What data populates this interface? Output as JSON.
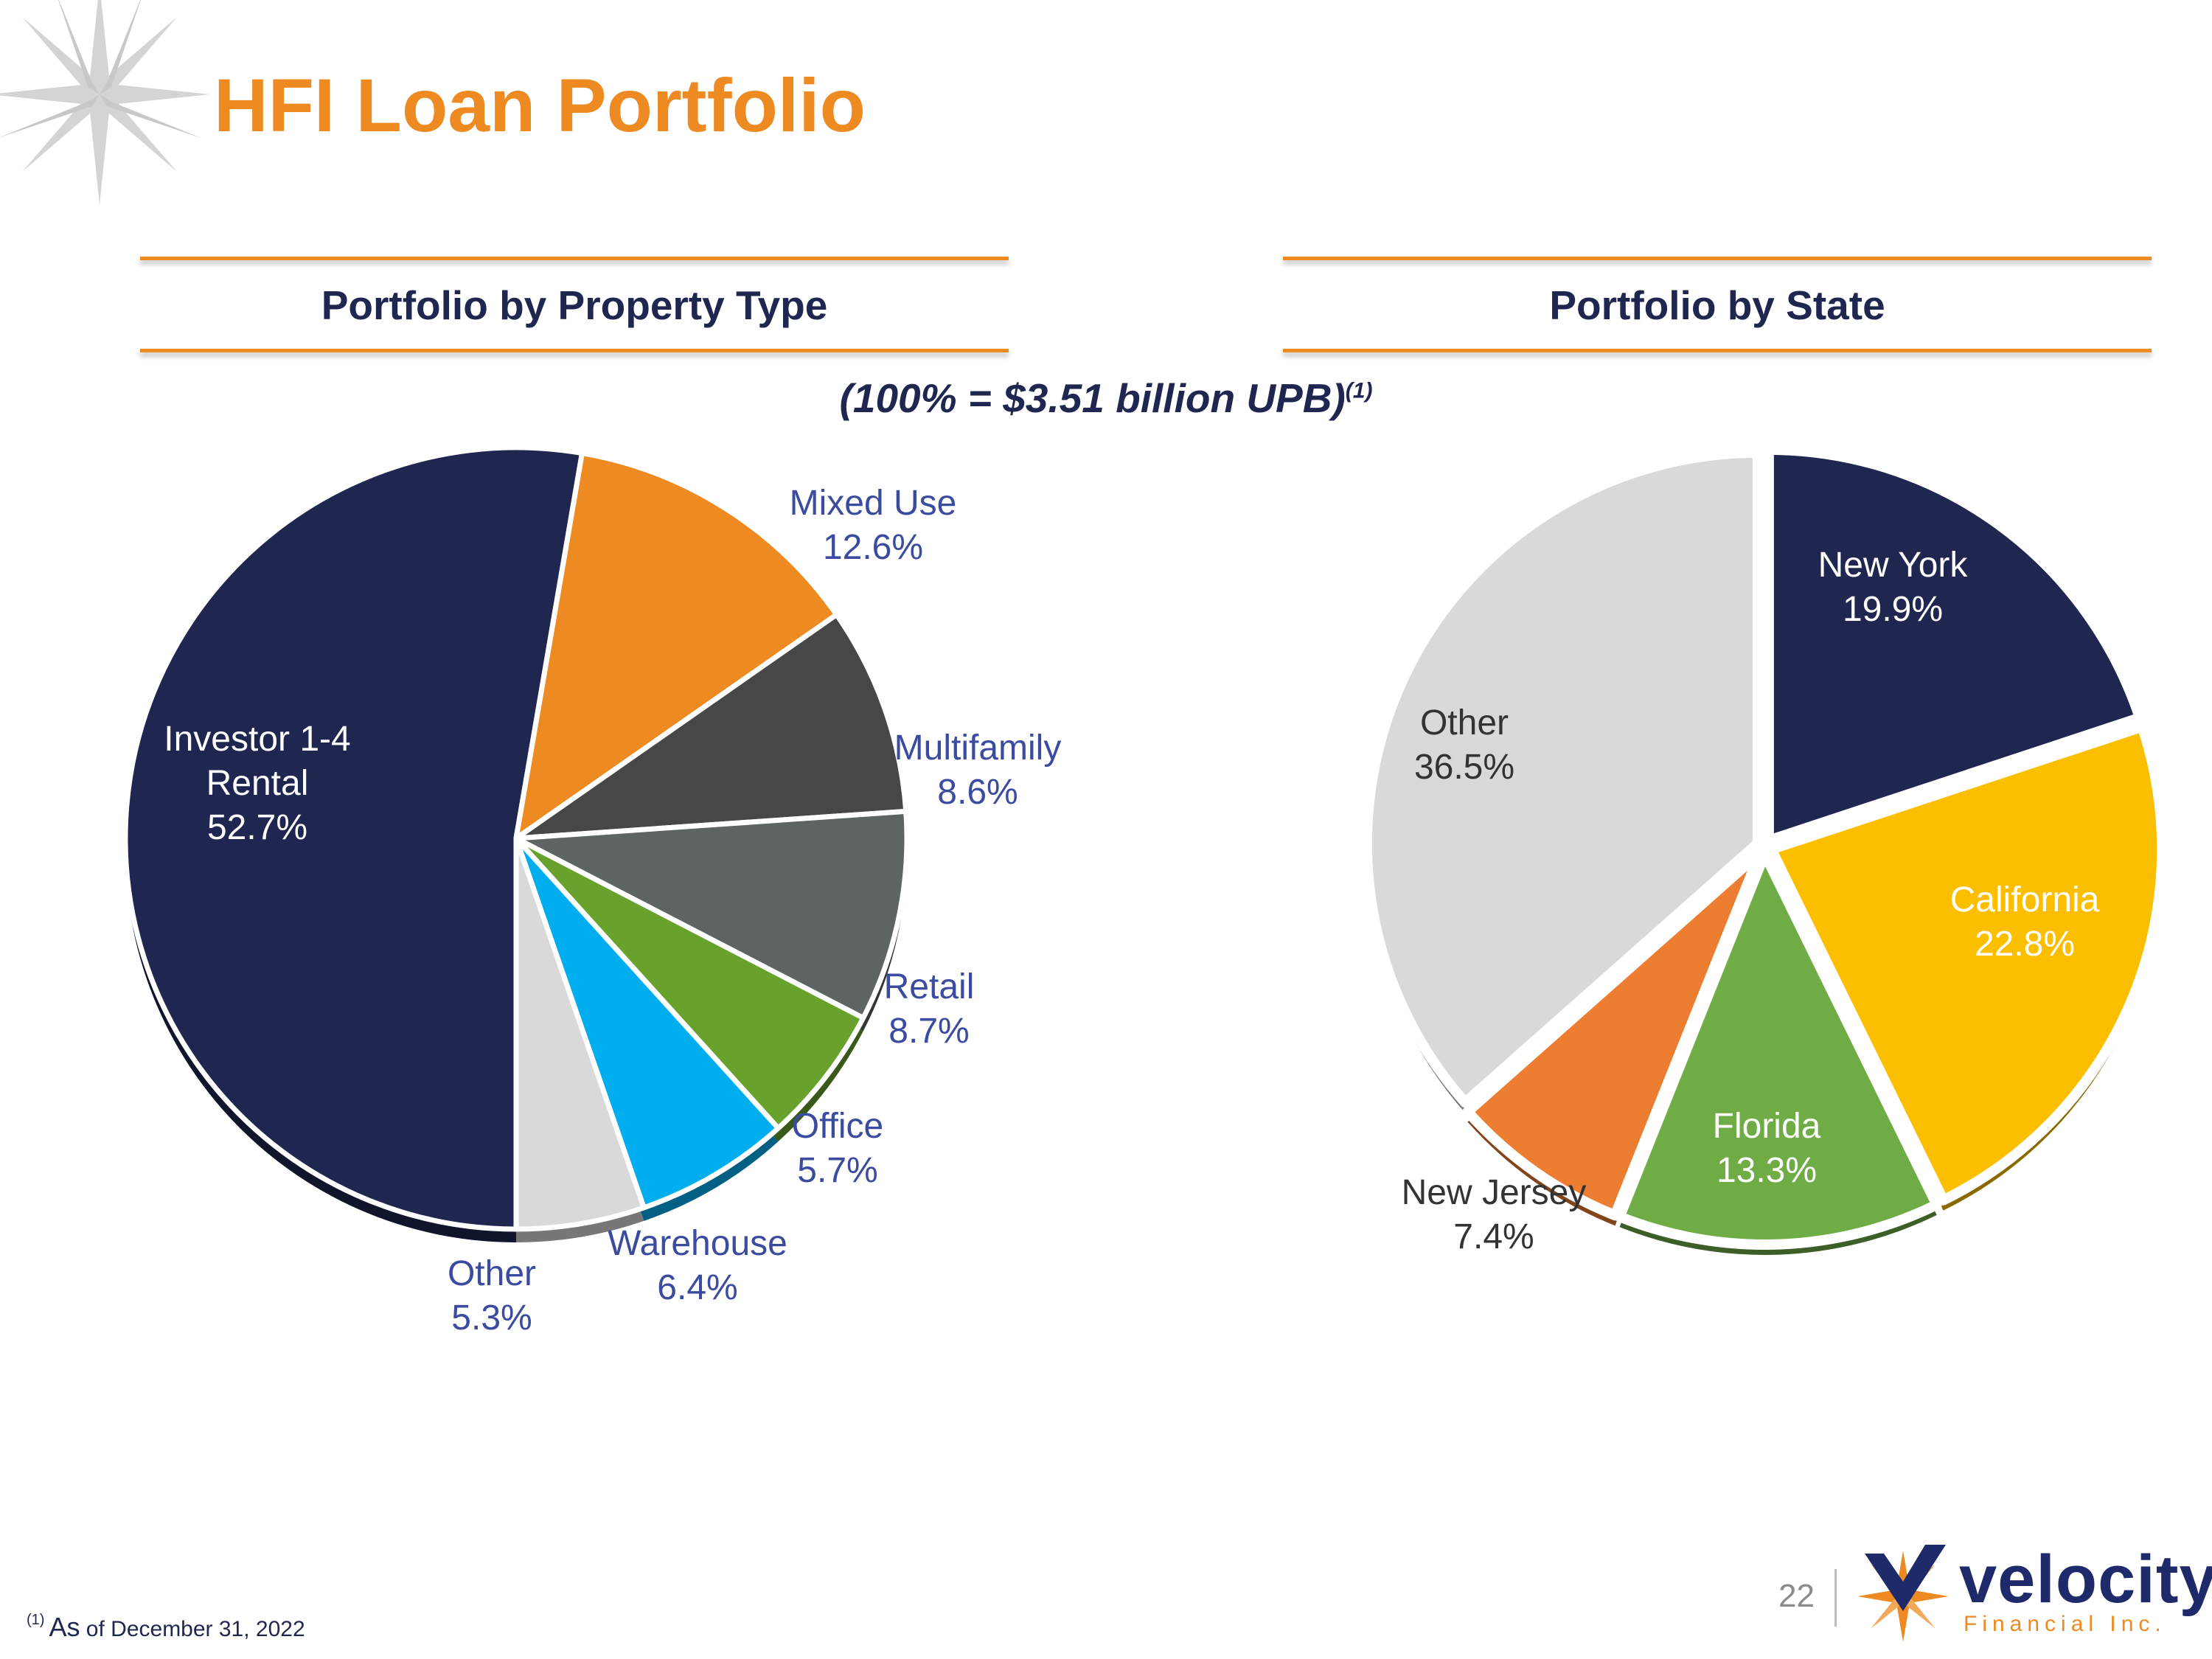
{
  "title": "HFI Loan Portfolio",
  "left_heading": "Portfolio by Property Type",
  "right_heading": "Portfolio by State",
  "note": "(100% = $3.51 billion UPB)",
  "note_marker": "(1)",
  "footnote_marker": "(1)",
  "footnote_as": "As",
  "footnote_text": " of December 31, 2022",
  "page_number": "22",
  "logo": {
    "name": "velocity",
    "subtitle": "Financial Inc."
  },
  "colors": {
    "title_orange": "#EE8A22",
    "navy": "#1F2650",
    "label_blue": "#3A4BA0"
  },
  "chart_data": [
    {
      "type": "pie",
      "title": "Portfolio by Property Type",
      "slices": [
        {
          "label": "Investor 1-4 Rental",
          "value": 52.7,
          "display": "52.7%",
          "color": "#1F2650"
        },
        {
          "label": "Mixed Use",
          "value": 12.6,
          "display": "12.6%",
          "color": "#EE8A22"
        },
        {
          "label": "Multifamily",
          "value": 8.6,
          "display": "8.6%",
          "color": "#474747"
        },
        {
          "label": "Retail",
          "value": 8.7,
          "display": "8.7%",
          "color": "#5E6363"
        },
        {
          "label": "Office",
          "value": 5.7,
          "display": "5.7%",
          "color": "#68A12C"
        },
        {
          "label": "Warehouse",
          "value": 6.4,
          "display": "6.4%",
          "color": "#00AEEF"
        },
        {
          "label": "Other",
          "value": 5.3,
          "display": "5.3%",
          "color": "#D9D9D9"
        }
      ]
    },
    {
      "type": "pie",
      "title": "Portfolio by State",
      "slices": [
        {
          "label": "New York",
          "value": 19.9,
          "display": "19.9%",
          "color": "#1F2650"
        },
        {
          "label": "California",
          "value": 22.8,
          "display": "22.8%",
          "color": "#FBBF00"
        },
        {
          "label": "Florida",
          "value": 13.3,
          "display": "13.3%",
          "color": "#6FAC46"
        },
        {
          "label": "New Jersey",
          "value": 7.4,
          "display": "7.4%",
          "color": "#ED7D31"
        },
        {
          "label": "Other",
          "value": 36.5,
          "display": "36.5%",
          "color": "#D9D9D9"
        }
      ]
    }
  ]
}
